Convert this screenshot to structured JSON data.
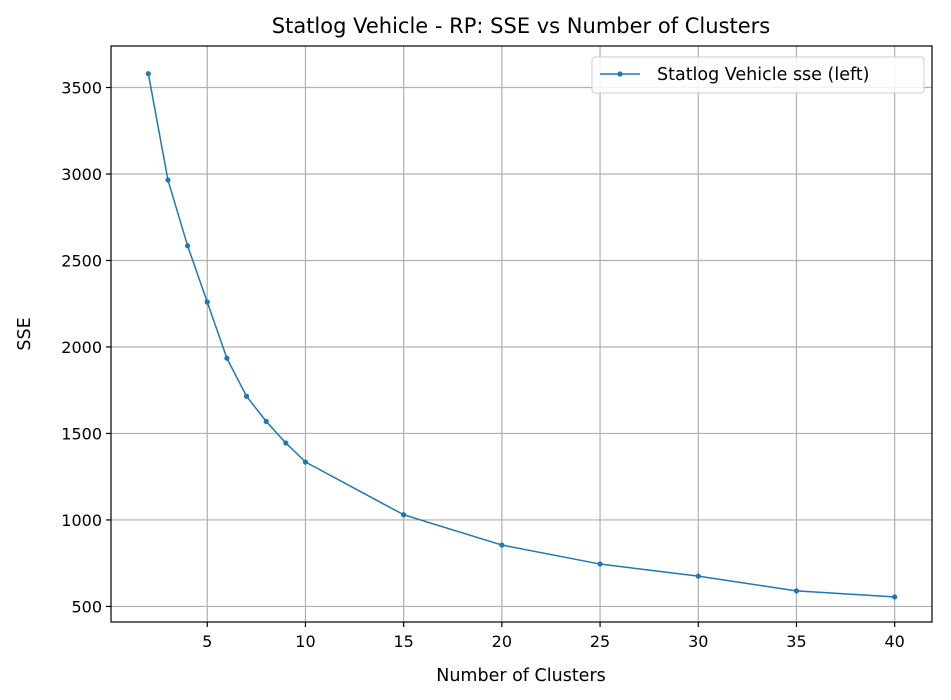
{
  "chart_data": {
    "type": "line",
    "title": "Statlog Vehicle - RP: SSE vs Number of Clusters",
    "xlabel": "Number of Clusters",
    "ylabel": "SSE",
    "xlim": [
      0.1,
      41.9
    ],
    "ylim": [
      410,
      3740
    ],
    "x_ticks": [
      5,
      10,
      15,
      20,
      25,
      30,
      35,
      40
    ],
    "y_ticks": [
      500,
      1000,
      1500,
      2000,
      2500,
      3000,
      3500
    ],
    "grid": true,
    "legend_position": "top-right",
    "series": [
      {
        "name": "Statlog Vehicle sse (left)",
        "color": "#1f77b4",
        "marker": "dot",
        "x": [
          2,
          3,
          4,
          5,
          6,
          7,
          8,
          9,
          10,
          15,
          20,
          25,
          30,
          35,
          40
        ],
        "y": [
          3580,
          2965,
          2585,
          2260,
          1935,
          1715,
          1570,
          1445,
          1335,
          1030,
          855,
          745,
          675,
          590,
          555
        ]
      }
    ]
  }
}
